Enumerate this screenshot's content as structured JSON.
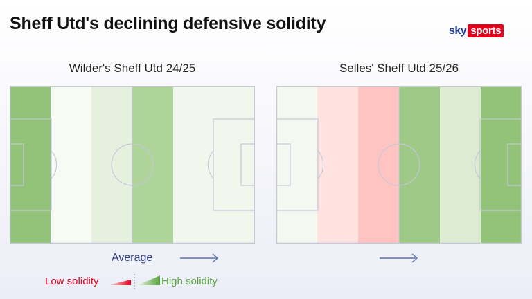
{
  "header": {
    "title": "Sheff Utd's declining defensive solidity",
    "logo_sky": "sky",
    "logo_sports": "sports"
  },
  "pitches": [
    {
      "label": "Wilder's Sheff Utd 24/25",
      "zones": [
        "#92c378",
        "#f7fbf4",
        "#e6f0de",
        "#aed49a",
        "#f2f7ee",
        "#f2f7ee"
      ]
    },
    {
      "label": "Selles' Sheff Utd 25/26",
      "zones": [
        "#f4f8f0",
        "#ffe3e1",
        "#ffc4c2",
        "#9ec987",
        "#dcebd2",
        "#92c378"
      ]
    }
  ],
  "legend": {
    "average_label": "Average",
    "low_label": "Low solidity",
    "high_label": "High solidity",
    "low_color": "#e3001b",
    "high_color": "#55a33a"
  }
}
